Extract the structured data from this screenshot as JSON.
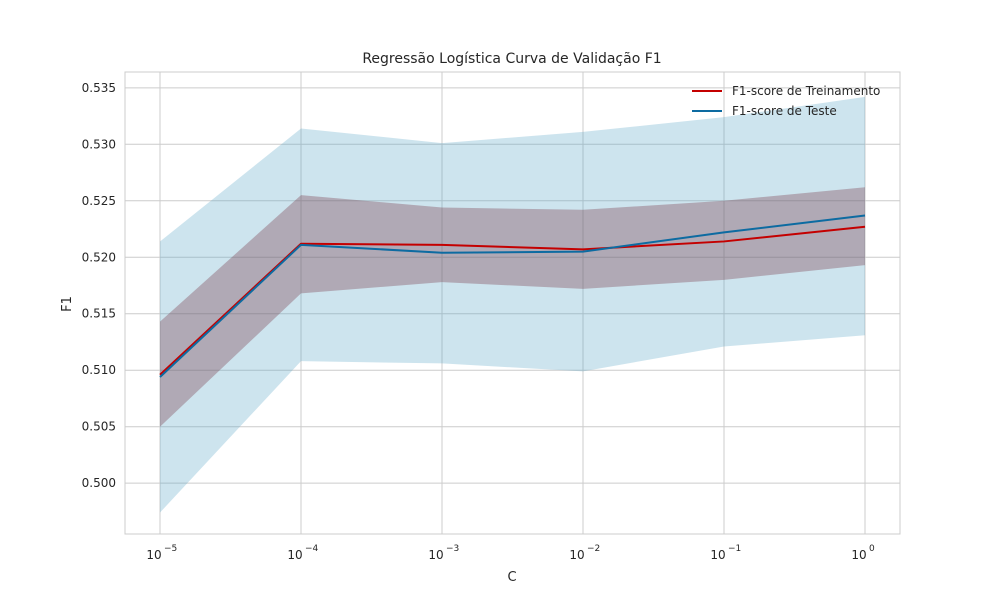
{
  "chart_data": {
    "type": "line",
    "title": "Regressão Logística Curva de Validação F1",
    "xlabel": "C",
    "ylabel": "F1",
    "x_scale": "log",
    "x": [
      1e-05,
      0.0001,
      0.001,
      0.01,
      0.1,
      1
    ],
    "x_tick_labels": [
      {
        "base": "10",
        "exp": "−5"
      },
      {
        "base": "10",
        "exp": "−4"
      },
      {
        "base": "10",
        "exp": "−3"
      },
      {
        "base": "10",
        "exp": "−2"
      },
      {
        "base": "10",
        "exp": "−1"
      },
      {
        "base": "10",
        "exp": "0"
      }
    ],
    "ylim": [
      0.4955,
      0.5364
    ],
    "y_ticks": [
      0.5,
      0.505,
      0.51,
      0.515,
      0.52,
      0.525,
      0.53,
      0.535
    ],
    "y_tick_labels": [
      "0.500",
      "0.505",
      "0.510",
      "0.515",
      "0.520",
      "0.525",
      "0.530",
      "0.535"
    ],
    "grid": true,
    "legend_position": "top-right",
    "series": [
      {
        "name": "F1-score de Treinamento",
        "color": "#c40000",
        "band_color": "#7a3c4a",
        "values": [
          0.5096,
          0.5212,
          0.5211,
          0.5207,
          0.5214,
          0.5227
        ],
        "upper": [
          0.5143,
          0.5255,
          0.5244,
          0.5242,
          0.525,
          0.5262
        ],
        "lower": [
          0.505,
          0.5168,
          0.5178,
          0.5172,
          0.518,
          0.5193
        ]
      },
      {
        "name": "F1-score de Teste",
        "color": "#0d6ba1",
        "band_color": "#5aa7c8",
        "values": [
          0.5094,
          0.5211,
          0.5204,
          0.5205,
          0.5222,
          0.5237
        ],
        "upper": [
          0.5214,
          0.5314,
          0.5301,
          0.5311,
          0.5324,
          0.5342
        ],
        "lower": [
          0.4974,
          0.5108,
          0.5106,
          0.5099,
          0.5121,
          0.5131
        ]
      }
    ]
  }
}
